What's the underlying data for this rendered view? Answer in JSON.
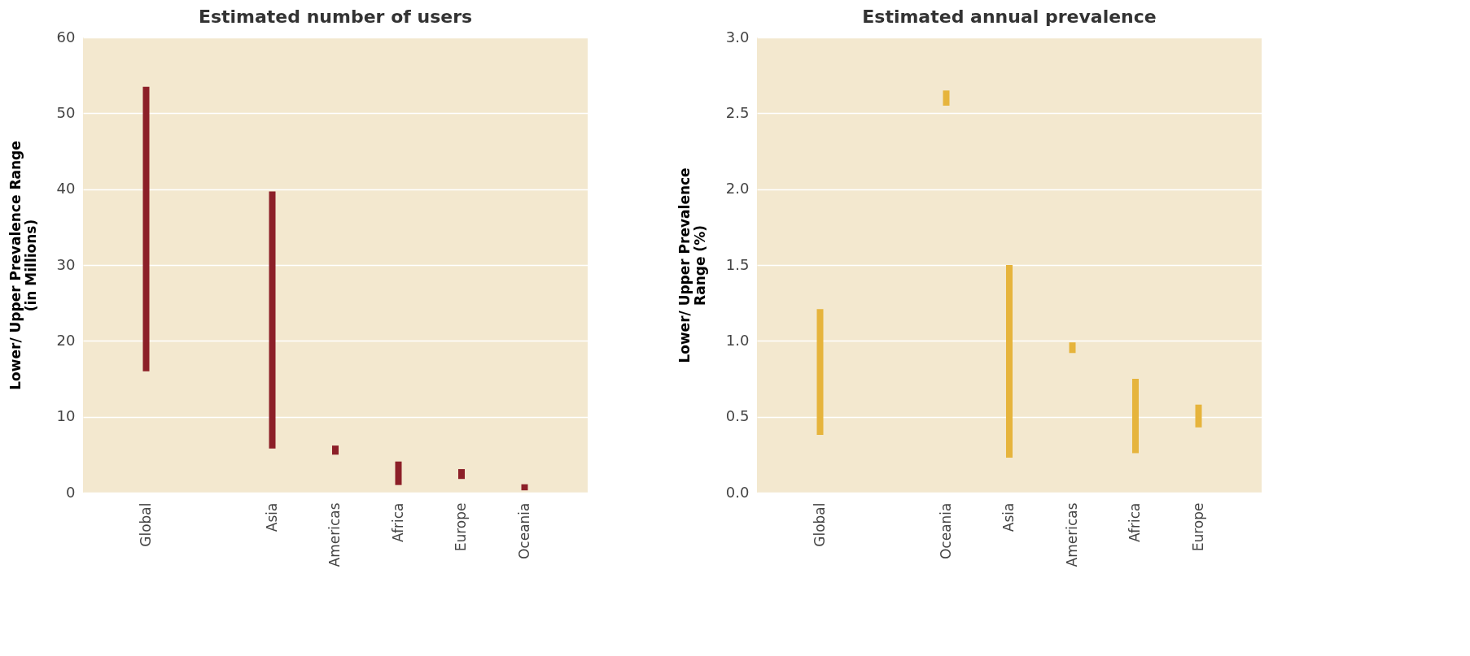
{
  "chart_data": [
    {
      "type": "bar",
      "title": "Estimated number of users",
      "ylabel": "Lower/ Upper Prevalence Range\n(in Millions)",
      "categories": [
        "Global",
        null,
        "Asia",
        "Americas",
        "Africa",
        "Europe",
        "Oceania"
      ],
      "base": [
        16,
        null,
        5.8,
        5,
        1,
        1.8,
        0.3
      ],
      "values": [
        37.5,
        null,
        33.9,
        1.2,
        3.1,
        1.3,
        0.8
      ],
      "color": "#8c1f28",
      "ylim": [
        0,
        60
      ],
      "yticks": [
        0,
        10,
        20,
        30,
        40,
        50,
        60
      ],
      "grid": "y"
    },
    {
      "type": "bar",
      "title": "Estimated annual prevalence",
      "ylabel": "Lower/ Upper Prevalence\nRange (%)",
      "categories": [
        "Global",
        null,
        "Oceania",
        "Asia",
        "Americas",
        "Africa",
        "Europe"
      ],
      "base": [
        0.38,
        null,
        2.55,
        0.23,
        0.92,
        0.26,
        0.43
      ],
      "values": [
        0.83,
        null,
        0.1,
        1.27,
        0.07,
        0.49,
        0.15
      ],
      "color": "#e6b43c",
      "ylim": [
        0,
        3
      ],
      "yticks": [
        {
          "value": 0,
          "label": "0.0"
        },
        {
          "value": 0.5,
          "label": "0.5"
        },
        {
          "value": 1,
          "label": "1.0"
        },
        {
          "value": 1.5,
          "label": "1.5"
        },
        {
          "value": 2,
          "label": "2.0"
        },
        {
          "value": 2.5,
          "label": "2.5"
        },
        {
          "value": 3,
          "label": "3.0"
        }
      ],
      "grid": "y"
    }
  ]
}
